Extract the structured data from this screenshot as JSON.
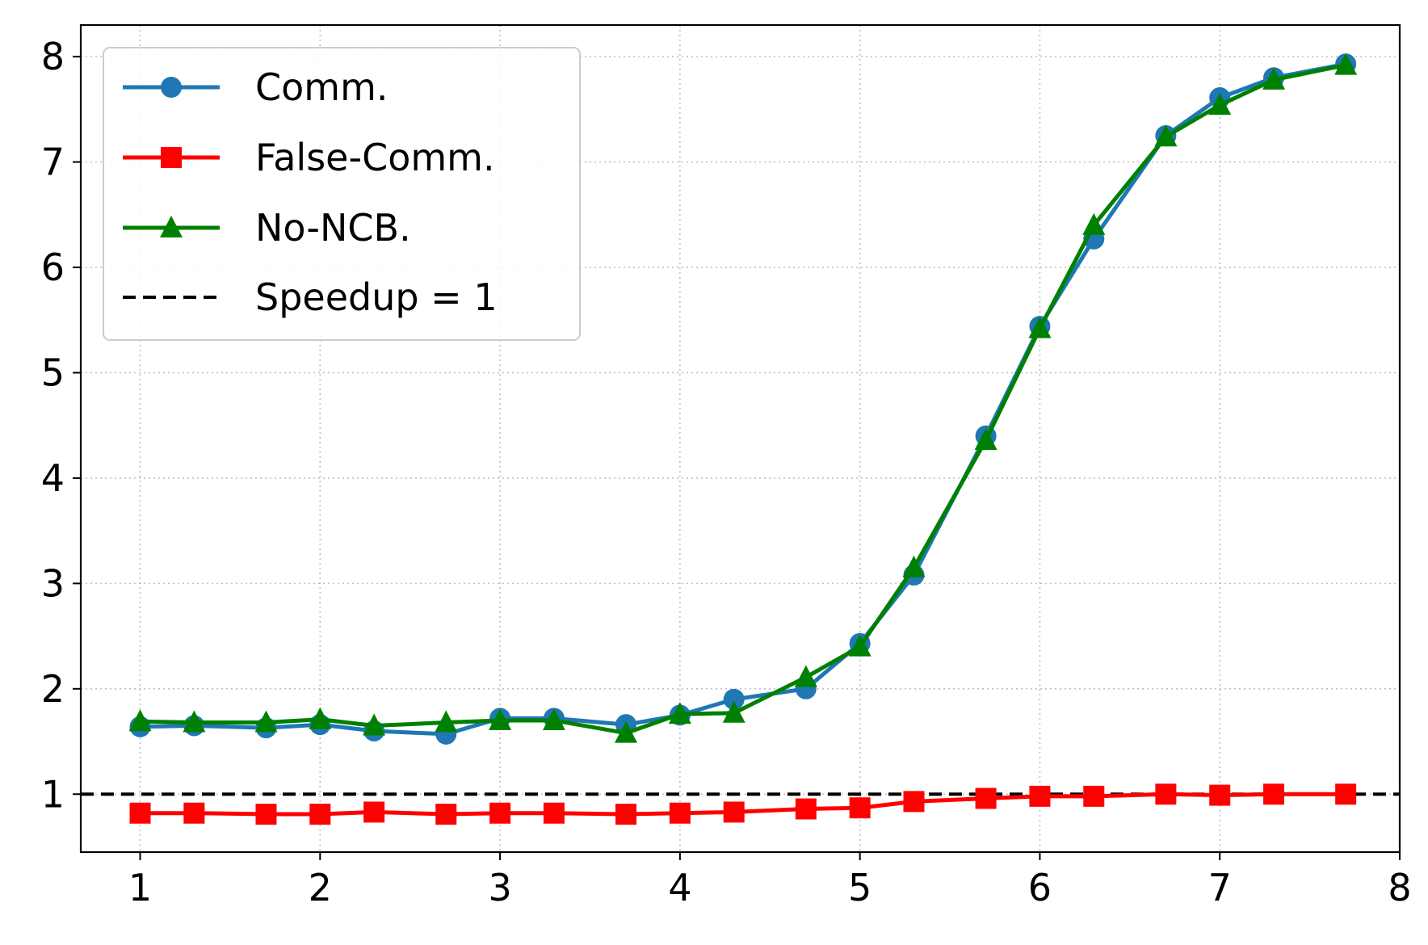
{
  "chart_data": {
    "type": "line",
    "title": "",
    "xlabel": "",
    "ylabel": "",
    "xlim": [
      0.67,
      8.0
    ],
    "ylim": [
      0.45,
      8.3
    ],
    "xticks": [
      1,
      2,
      3,
      4,
      5,
      6,
      7,
      8
    ],
    "yticks": [
      1,
      2,
      3,
      4,
      5,
      6,
      7,
      8
    ],
    "grid": true,
    "legend_position": "top-left",
    "x": [
      1.0,
      1.3,
      1.7,
      2.0,
      2.3,
      2.7,
      3.0,
      3.3,
      3.7,
      4.0,
      4.3,
      4.7,
      5.0,
      5.3,
      5.7,
      6.0,
      6.3,
      6.7,
      7.0,
      7.3,
      7.7
    ],
    "series": [
      {
        "name": "Comm.",
        "color": "#1f77b4",
        "marker": "circle",
        "values": [
          1.64,
          1.65,
          1.63,
          1.66,
          1.6,
          1.57,
          1.72,
          1.72,
          1.66,
          1.75,
          1.9,
          2.0,
          2.43,
          3.08,
          4.4,
          5.44,
          6.27,
          7.25,
          7.61,
          7.8,
          7.93
        ]
      },
      {
        "name": "False-Comm.",
        "color": "#ff0000",
        "marker": "square",
        "values": [
          0.82,
          0.82,
          0.81,
          0.81,
          0.83,
          0.81,
          0.82,
          0.82,
          0.81,
          0.82,
          0.83,
          0.86,
          0.87,
          0.93,
          0.96,
          0.98,
          0.98,
          1.0,
          0.99,
          1.0,
          1.0
        ]
      },
      {
        "name": "No-NCB.",
        "color": "#008000",
        "marker": "triangle",
        "values": [
          1.69,
          1.68,
          1.68,
          1.71,
          1.65,
          1.68,
          1.7,
          1.7,
          1.58,
          1.76,
          1.77,
          2.11,
          2.4,
          3.15,
          4.36,
          5.42,
          6.4,
          7.24,
          7.54,
          7.78,
          7.92
        ]
      }
    ],
    "reference_line": {
      "name": "Speedup = 1",
      "y": 1,
      "color": "#000000",
      "style": "dashed"
    }
  }
}
